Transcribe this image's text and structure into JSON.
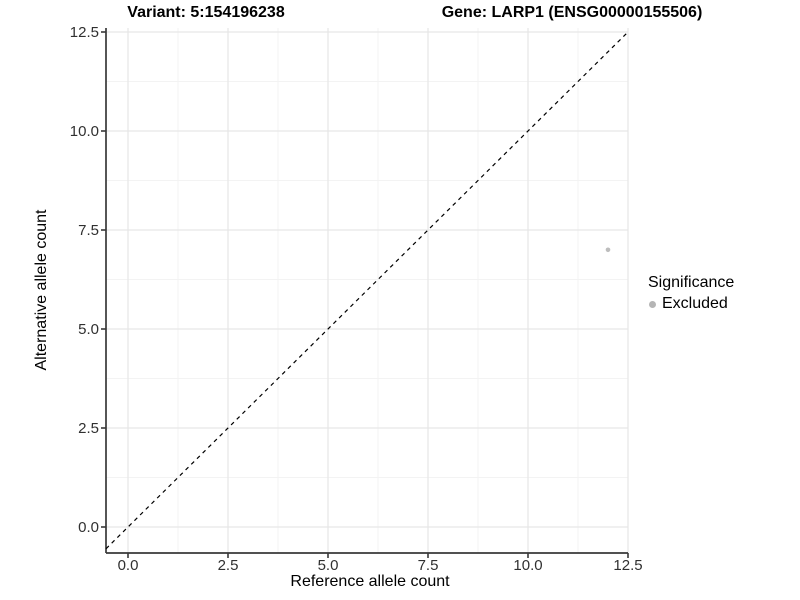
{
  "titles": {
    "left": "Variant: 5:154196238",
    "right": "Gene: LARP1 (ENSG00000155506)"
  },
  "axes": {
    "x_label": "Reference allele count",
    "y_label": "Alternative allele count"
  },
  "legend": {
    "title": "Significance",
    "items": [
      {
        "label": "Excluded",
        "color": "#b5b5b5"
      }
    ]
  },
  "colors": {
    "background": "#ffffff",
    "axis_line": "#383838",
    "tick_label": "#303030",
    "grid_major": "#e7e7e7",
    "grid_minor": "#f3f3f3",
    "reference_line": "#000000",
    "point": "#bdbdbd"
  },
  "chart_data": {
    "type": "scatter",
    "title": "Variant: 5:154196238   |   Gene: LARP1 (ENSG00000155506)",
    "xlabel": "Reference allele count",
    "ylabel": "Alternative allele count",
    "x_ticks": [
      0.0,
      2.5,
      5.0,
      7.5,
      10.0,
      12.5
    ],
    "y_ticks": [
      0.0,
      2.5,
      5.0,
      7.5,
      10.0,
      12.5
    ],
    "xlim": [
      -0.55,
      12.5
    ],
    "ylim": [
      -0.66,
      12.6
    ],
    "grid": "major+minor",
    "legend_title": "Significance",
    "legend_position": "right",
    "series": [
      {
        "name": "Excluded",
        "color": "#bdbdbd"
      }
    ],
    "points": [
      {
        "x": 12,
        "y": 7,
        "series": "Excluded"
      }
    ],
    "reference_line": {
      "equation": "y = x",
      "style": "dashed",
      "color": "#000000"
    }
  }
}
